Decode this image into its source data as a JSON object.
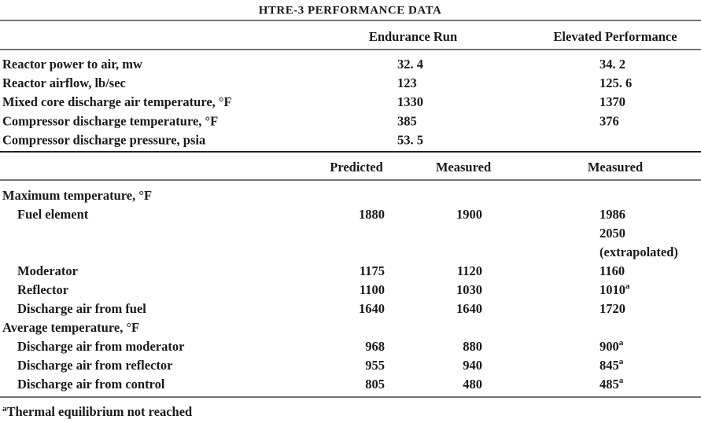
{
  "title": "HTRE-3 PERFORMANCE DATA",
  "table1": {
    "headers": [
      "Endurance Run",
      "Elevated Performance"
    ],
    "rows": [
      {
        "label": "Reactor power to air,  mw",
        "endurance": "32. 4",
        "elevated": "34. 2"
      },
      {
        "label": "Reactor airflow,  lb/sec",
        "endurance": "123",
        "elevated": "125. 6"
      },
      {
        "label": "Mixed core discharge air temperature, °F",
        "endurance": "1330",
        "elevated": "1370"
      },
      {
        "label": "Compressor discharge temperature, °F",
        "endurance": "385",
        "elevated": "376"
      },
      {
        "label": "Compressor discharge pressure,  psia",
        "endurance": "53. 5"
      }
    ]
  },
  "table2": {
    "headers": [
      "Predicted",
      "Measured",
      "Measured"
    ],
    "groups": [
      {
        "title": "Maximum temperature, °F",
        "items": [
          {
            "label": "Fuel element",
            "predicted": "1880",
            "measured": "1900",
            "elevated": [
              "1986",
              "2050",
              "(extrapolated)"
            ]
          },
          {
            "label": "Moderator",
            "predicted": "1175",
            "measured": "1120",
            "elevated": [
              "1160"
            ]
          },
          {
            "label": "Reflector",
            "predicted": "1100",
            "measured": "1030",
            "elevated": [
              "1010"
            ],
            "note": "a"
          },
          {
            "label": "Discharge air from fuel",
            "predicted": "1640",
            "measured": "1640",
            "elevated": [
              "1720"
            ]
          }
        ]
      },
      {
        "title": "Average temperature, °F",
        "items": [
          {
            "label": "Discharge air from moderator",
            "predicted": "968",
            "measured": "880",
            "elevated": [
              "900"
            ],
            "note": "a"
          },
          {
            "label": "Discharge air from reflector",
            "predicted": "955",
            "measured": "940",
            "elevated": [
              "845"
            ],
            "note": "a"
          },
          {
            "label": "Discharge air from control",
            "predicted": "805",
            "measured": "480",
            "elevated": [
              "485"
            ],
            "note": "a"
          }
        ]
      }
    ]
  },
  "footnote": {
    "mark": "a",
    "text": "Thermal equilibrium not reached"
  }
}
